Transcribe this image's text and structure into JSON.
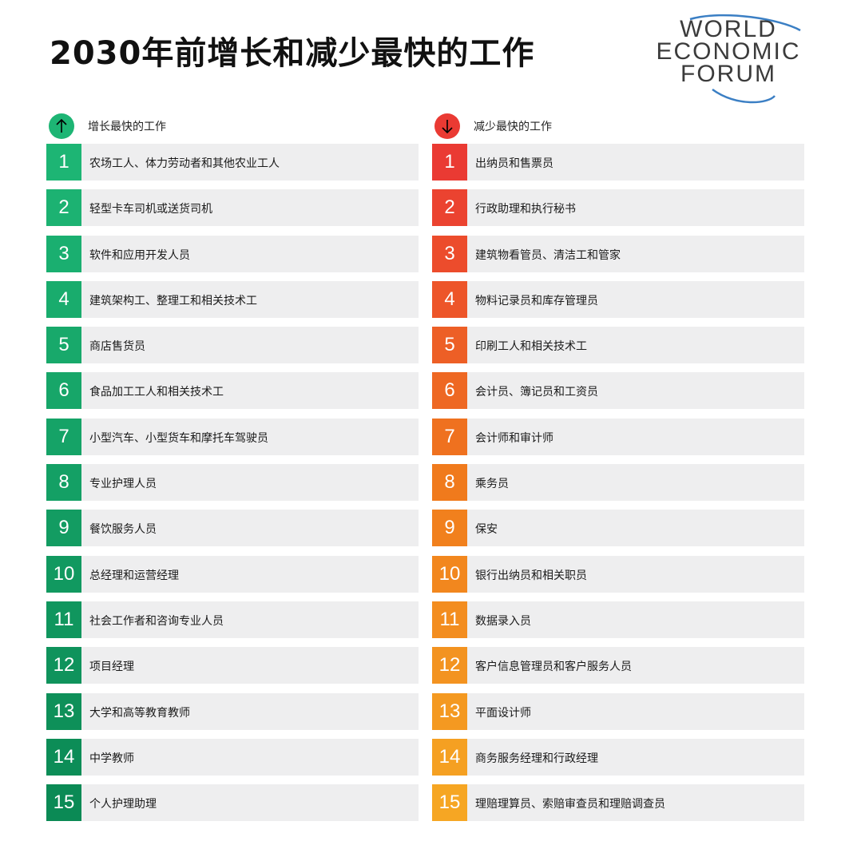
{
  "title": "2030年前增长和减少最快的工作",
  "logo": {
    "line1": "WORLD",
    "line2": "ECONOMIC",
    "line3": "FORUM"
  },
  "growing": {
    "label": "增长最快的工作",
    "icon": "arrow-up-icon",
    "color": "#1db574",
    "items": [
      {
        "rank": "1",
        "job": "农场工人、体力劳动者和其他农业工人"
      },
      {
        "rank": "2",
        "job": "轻型卡车司机或送货司机"
      },
      {
        "rank": "3",
        "job": "软件和应用开发人员"
      },
      {
        "rank": "4",
        "job": "建筑架构工、整理工和相关技术工"
      },
      {
        "rank": "5",
        "job": "商店售货员"
      },
      {
        "rank": "6",
        "job": "食品加工工人和相关技术工"
      },
      {
        "rank": "7",
        "job": "小型汽车、小型货车和摩托车驾驶员"
      },
      {
        "rank": "8",
        "job": "专业护理人员"
      },
      {
        "rank": "9",
        "job": "餐饮服务人员"
      },
      {
        "rank": "10",
        "job": "总经理和运营经理"
      },
      {
        "rank": "11",
        "job": "社会工作者和咨询专业人员"
      },
      {
        "rank": "12",
        "job": "项目经理"
      },
      {
        "rank": "13",
        "job": "大学和高等教育教师"
      },
      {
        "rank": "14",
        "job": "中学教师"
      },
      {
        "rank": "15",
        "job": "个人护理助理"
      }
    ]
  },
  "declining": {
    "label": "减少最快的工作",
    "icon": "arrow-down-icon",
    "color": "#ea3a33",
    "items": [
      {
        "rank": "1",
        "job": "出纳员和售票员"
      },
      {
        "rank": "2",
        "job": "行政助理和执行秘书"
      },
      {
        "rank": "3",
        "job": "建筑物看管员、清洁工和管家"
      },
      {
        "rank": "4",
        "job": "物料记录员和库存管理员"
      },
      {
        "rank": "5",
        "job": "印刷工人和相关技术工"
      },
      {
        "rank": "6",
        "job": "会计员、簿记员和工资员"
      },
      {
        "rank": "7",
        "job": "会计师和审计师"
      },
      {
        "rank": "8",
        "job": "乘务员"
      },
      {
        "rank": "9",
        "job": "保安"
      },
      {
        "rank": "10",
        "job": "银行出纳员和相关职员"
      },
      {
        "rank": "11",
        "job": "数据录入员"
      },
      {
        "rank": "12",
        "job": "客户信息管理员和客户服务人员"
      },
      {
        "rank": "13",
        "job": "平面设计师"
      },
      {
        "rank": "14",
        "job": "商务服务经理和行政经理"
      },
      {
        "rank": "15",
        "job": "理赔理算员、索赔审查员和理赔调查员"
      }
    ]
  }
}
